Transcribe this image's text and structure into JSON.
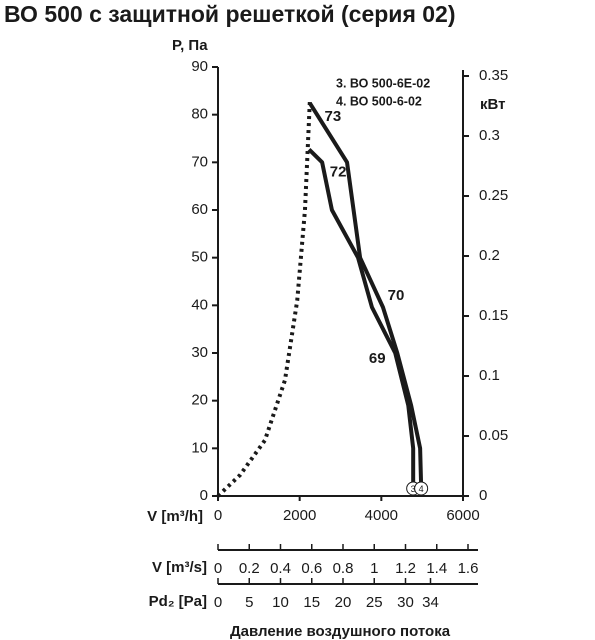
{
  "chart_data": {
    "type": "line",
    "title": "ВО 500 с защитной решеткой (серия 02)",
    "ylabel": "P, Па",
    "y2label": "кВт",
    "xlabel": "V [m³/h]",
    "xlim": [
      0,
      6000
    ],
    "xticks": [
      0,
      2000,
      4000,
      6000
    ],
    "ylim": [
      0,
      90
    ],
    "yticks": [
      0,
      10,
      20,
      30,
      40,
      50,
      60,
      70,
      80,
      90
    ],
    "y2lim": [
      0,
      0.35
    ],
    "y2ticks": [
      0,
      0.05,
      0.1,
      0.15,
      0.2,
      0.25,
      0.3,
      0.35
    ],
    "series": [
      {
        "name": "3. ВО 500-6Е-02",
        "color": "#1a1a1a",
        "marker": "3",
        "curve_labels": [
          "72",
          "69"
        ],
        "x": [
          2230,
          2550,
          2790,
          3430,
          3770,
          4340,
          4660,
          4780,
          4780
        ],
        "values": [
          72.7,
          70,
          60,
          50,
          39.6,
          30,
          19,
          10,
          2
        ]
      },
      {
        "name": "4. ВО 500-6-02",
        "color": "#1a1a1a",
        "marker": "4",
        "curve_labels": [
          "73",
          "70"
        ],
        "x": [
          2250,
          3160,
          3480,
          4040,
          4390,
          4730,
          4950,
          4975
        ],
        "values": [
          82.4,
          70,
          50,
          39.6,
          30,
          19,
          10,
          2
        ]
      },
      {
        "color": "#1a1a1a",
        "style": "dotted",
        "x": [
          0,
          540,
          1150,
          1640,
          1940,
          2130,
          2250
        ],
        "values": [
          0,
          4.4,
          11.7,
          24.3,
          41,
          60,
          83
        ]
      }
    ],
    "extra_axes": [
      {
        "label": "V [m³/s]",
        "lim": [
          0,
          1.6
        ],
        "ticks": [
          0,
          0.2,
          0.4,
          0.6,
          0.8,
          1,
          1.2,
          1.4,
          1.6
        ]
      },
      {
        "label": "Pd₂ [Pa]",
        "lim": [
          0,
          40
        ],
        "ticks": [
          0,
          5,
          10,
          15,
          20,
          25,
          30,
          34
        ]
      }
    ],
    "footer": "Давление воздушного потока"
  }
}
